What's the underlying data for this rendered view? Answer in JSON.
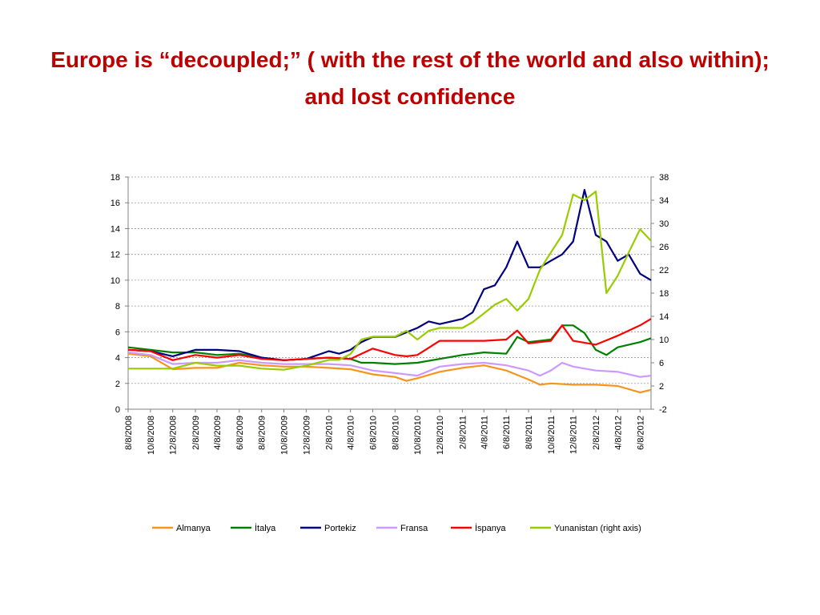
{
  "slide": {
    "title": "Europe is “decoupled;” ( with the rest of the world and also within); and lost confidence"
  },
  "chart_data": {
    "type": "line",
    "title": "",
    "xlabel": "",
    "ylabel": "",
    "y_left": {
      "min": 0,
      "max": 18,
      "ticks": [
        "0",
        "2",
        "4",
        "6",
        "8",
        "10",
        "12",
        "14",
        "16",
        "18"
      ]
    },
    "y_right": {
      "min": -2,
      "max": 38,
      "ticks": [
        "-2",
        "2",
        "6",
        "10",
        "14",
        "18",
        "22",
        "26",
        "30",
        "34",
        "38"
      ]
    },
    "x_range": [
      "2008-08-01",
      "2012-07-01"
    ],
    "x_ticks": [
      "8/8/2008",
      "10/8/2008",
      "12/8/2008",
      "2/8/2009",
      "4/8/2009",
      "6/8/2009",
      "8/8/2009",
      "10/8/2009",
      "12/8/2009",
      "2/8/2010",
      "4/8/2010",
      "6/8/2010",
      "8/8/2010",
      "10/8/2010",
      "12/8/2010",
      "2/8/2011",
      "4/8/2011",
      "6/8/2011",
      "8/8/2011",
      "10/8/2011",
      "12/8/2011",
      "2/8/2012",
      "4/8/2012",
      "6/8/2012"
    ],
    "grid": "horizontal dashed",
    "legend_position": "bottom",
    "series": [
      {
        "name": "Almanya",
        "color": "#f7941d",
        "axis": "left",
        "points": [
          [
            "2008-08-01",
            4.3
          ],
          [
            "2008-10-01",
            4.1
          ],
          [
            "2008-12-01",
            3.1
          ],
          [
            "2009-02-01",
            3.2
          ],
          [
            "2009-04-01",
            3.2
          ],
          [
            "2009-06-01",
            3.6
          ],
          [
            "2009-08-01",
            3.4
          ],
          [
            "2009-10-01",
            3.3
          ],
          [
            "2009-12-01",
            3.3
          ],
          [
            "2010-02-01",
            3.2
          ],
          [
            "2010-04-01",
            3.1
          ],
          [
            "2010-06-01",
            2.7
          ],
          [
            "2010-08-01",
            2.5
          ],
          [
            "2010-09-01",
            2.2
          ],
          [
            "2010-10-01",
            2.4
          ],
          [
            "2010-12-01",
            2.9
          ],
          [
            "2011-02-01",
            3.2
          ],
          [
            "2011-04-01",
            3.4
          ],
          [
            "2011-06-01",
            3.0
          ],
          [
            "2011-08-01",
            2.3
          ],
          [
            "2011-09-01",
            1.9
          ],
          [
            "2011-10-01",
            2.0
          ],
          [
            "2011-12-01",
            1.9
          ],
          [
            "2012-02-01",
            1.9
          ],
          [
            "2012-04-01",
            1.8
          ],
          [
            "2012-06-01",
            1.3
          ],
          [
            "2012-07-01",
            1.5
          ]
        ]
      },
      {
        "name": "İtalya",
        "color": "#008000",
        "axis": "left",
        "points": [
          [
            "2008-08-01",
            4.8
          ],
          [
            "2008-10-01",
            4.6
          ],
          [
            "2008-12-01",
            4.4
          ],
          [
            "2009-02-01",
            4.4
          ],
          [
            "2009-04-01",
            4.2
          ],
          [
            "2009-06-01",
            4.3
          ],
          [
            "2009-08-01",
            4.0
          ],
          [
            "2009-10-01",
            3.8
          ],
          [
            "2009-12-01",
            3.9
          ],
          [
            "2010-02-01",
            4.0
          ],
          [
            "2010-04-01",
            3.9
          ],
          [
            "2010-05-01",
            3.6
          ],
          [
            "2010-06-01",
            3.6
          ],
          [
            "2010-08-01",
            3.5
          ],
          [
            "2010-10-01",
            3.6
          ],
          [
            "2010-12-01",
            3.9
          ],
          [
            "2011-02-01",
            4.2
          ],
          [
            "2011-04-01",
            4.4
          ],
          [
            "2011-06-01",
            4.3
          ],
          [
            "2011-07-01",
            5.6
          ],
          [
            "2011-08-01",
            5.2
          ],
          [
            "2011-10-01",
            5.4
          ],
          [
            "2011-11-01",
            6.5
          ],
          [
            "2011-12-01",
            6.5
          ],
          [
            "2012-01-01",
            5.9
          ],
          [
            "2012-02-01",
            4.6
          ],
          [
            "2012-03-01",
            4.2
          ],
          [
            "2012-04-01",
            4.8
          ],
          [
            "2012-06-01",
            5.2
          ],
          [
            "2012-07-01",
            5.5
          ]
        ]
      },
      {
        "name": "Portekiz",
        "color": "#000080",
        "axis": "left",
        "points": [
          [
            "2008-08-01",
            4.6
          ],
          [
            "2008-10-01",
            4.5
          ],
          [
            "2008-12-01",
            4.1
          ],
          [
            "2009-02-01",
            4.6
          ],
          [
            "2009-04-01",
            4.6
          ],
          [
            "2009-06-01",
            4.5
          ],
          [
            "2009-08-01",
            4.0
          ],
          [
            "2009-10-01",
            3.8
          ],
          [
            "2009-12-01",
            3.9
          ],
          [
            "2010-02-01",
            4.5
          ],
          [
            "2010-03-01",
            4.3
          ],
          [
            "2010-04-01",
            4.6
          ],
          [
            "2010-05-01",
            5.2
          ],
          [
            "2010-06-01",
            5.6
          ],
          [
            "2010-08-01",
            5.6
          ],
          [
            "2010-10-01",
            6.3
          ],
          [
            "2010-11-01",
            6.8
          ],
          [
            "2010-12-01",
            6.6
          ],
          [
            "2011-02-01",
            7.0
          ],
          [
            "2011-03-01",
            7.5
          ],
          [
            "2011-04-01",
            9.3
          ],
          [
            "2011-05-01",
            9.6
          ],
          [
            "2011-06-01",
            11.0
          ],
          [
            "2011-07-01",
            13.0
          ],
          [
            "2011-08-01",
            11.0
          ],
          [
            "2011-09-01",
            11.0
          ],
          [
            "2011-10-01",
            11.5
          ],
          [
            "2011-11-01",
            12.0
          ],
          [
            "2011-12-01",
            13.0
          ],
          [
            "2012-01-01",
            17.0
          ],
          [
            "2012-02-01",
            13.5
          ],
          [
            "2012-03-01",
            13.0
          ],
          [
            "2012-04-01",
            11.5
          ],
          [
            "2012-05-01",
            12.0
          ],
          [
            "2012-06-01",
            10.5
          ],
          [
            "2012-07-01",
            10.0
          ]
        ]
      },
      {
        "name": "Fransa",
        "color": "#cc99ff",
        "axis": "left",
        "points": [
          [
            "2008-08-01",
            4.4
          ],
          [
            "2008-10-01",
            4.2
          ],
          [
            "2008-12-01",
            3.5
          ],
          [
            "2009-02-01",
            3.6
          ],
          [
            "2009-04-01",
            3.6
          ],
          [
            "2009-06-01",
            3.8
          ],
          [
            "2009-08-01",
            3.6
          ],
          [
            "2009-10-01",
            3.5
          ],
          [
            "2009-12-01",
            3.5
          ],
          [
            "2010-02-01",
            3.5
          ],
          [
            "2010-04-01",
            3.4
          ],
          [
            "2010-06-01",
            3.0
          ],
          [
            "2010-08-01",
            2.8
          ],
          [
            "2010-10-01",
            2.6
          ],
          [
            "2010-12-01",
            3.3
          ],
          [
            "2011-02-01",
            3.5
          ],
          [
            "2011-04-01",
            3.6
          ],
          [
            "2011-06-01",
            3.4
          ],
          [
            "2011-08-01",
            3.0
          ],
          [
            "2011-09-01",
            2.6
          ],
          [
            "2011-10-01",
            3.0
          ],
          [
            "2011-11-01",
            3.6
          ],
          [
            "2011-12-01",
            3.3
          ],
          [
            "2012-02-01",
            3.0
          ],
          [
            "2012-04-01",
            2.9
          ],
          [
            "2012-06-01",
            2.5
          ],
          [
            "2012-07-01",
            2.6
          ]
        ]
      },
      {
        "name": "İspanya",
        "color": "#ff0000",
        "axis": "left",
        "points": [
          [
            "2008-08-01",
            4.6
          ],
          [
            "2008-10-01",
            4.5
          ],
          [
            "2008-12-01",
            3.8
          ],
          [
            "2009-02-01",
            4.2
          ],
          [
            "2009-04-01",
            4.0
          ],
          [
            "2009-06-01",
            4.2
          ],
          [
            "2009-08-01",
            3.9
          ],
          [
            "2009-10-01",
            3.8
          ],
          [
            "2009-12-01",
            3.9
          ],
          [
            "2010-02-01",
            4.0
          ],
          [
            "2010-04-01",
            3.9
          ],
          [
            "2010-06-01",
            4.7
          ],
          [
            "2010-08-01",
            4.2
          ],
          [
            "2010-09-01",
            4.1
          ],
          [
            "2010-10-01",
            4.2
          ],
          [
            "2010-12-01",
            5.3
          ],
          [
            "2011-02-01",
            5.3
          ],
          [
            "2011-04-01",
            5.3
          ],
          [
            "2011-06-01",
            5.4
          ],
          [
            "2011-07-01",
            6.1
          ],
          [
            "2011-08-01",
            5.1
          ],
          [
            "2011-10-01",
            5.3
          ],
          [
            "2011-11-01",
            6.5
          ],
          [
            "2011-12-01",
            5.3
          ],
          [
            "2012-02-01",
            5.0
          ],
          [
            "2012-04-01",
            5.7
          ],
          [
            "2012-06-01",
            6.5
          ],
          [
            "2012-07-01",
            7.0
          ]
        ]
      },
      {
        "name": "Yunanistan (right axis)",
        "color": "#99cc00",
        "axis": "right",
        "points": [
          [
            "2008-08-01",
            5.0
          ],
          [
            "2008-10-01",
            5.0
          ],
          [
            "2008-12-01",
            5.0
          ],
          [
            "2009-02-01",
            6.0
          ],
          [
            "2009-04-01",
            5.5
          ],
          [
            "2009-06-01",
            5.5
          ],
          [
            "2009-08-01",
            5.0
          ],
          [
            "2009-10-01",
            4.8
          ],
          [
            "2009-12-01",
            5.5
          ],
          [
            "2010-02-01",
            6.5
          ],
          [
            "2010-03-01",
            6.5
          ],
          [
            "2010-04-01",
            7.5
          ],
          [
            "2010-05-01",
            10.0
          ],
          [
            "2010-06-01",
            10.5
          ],
          [
            "2010-08-01",
            10.5
          ],
          [
            "2010-09-01",
            11.5
          ],
          [
            "2010-10-01",
            10.0
          ],
          [
            "2010-11-01",
            11.5
          ],
          [
            "2010-12-01",
            12.0
          ],
          [
            "2011-02-01",
            12.0
          ],
          [
            "2011-03-01",
            13.0
          ],
          [
            "2011-04-01",
            14.5
          ],
          [
            "2011-05-01",
            16.0
          ],
          [
            "2011-06-01",
            17.0
          ],
          [
            "2011-07-01",
            15.0
          ],
          [
            "2011-08-01",
            17.0
          ],
          [
            "2011-09-01",
            22.0
          ],
          [
            "2011-10-01",
            25.0
          ],
          [
            "2011-11-01",
            28.0
          ],
          [
            "2011-12-01",
            35.0
          ],
          [
            "2012-01-01",
            34.0
          ],
          [
            "2012-02-01",
            35.5
          ],
          [
            "2012-03-01",
            18.0
          ],
          [
            "2012-04-01",
            21.0
          ],
          [
            "2012-05-01",
            25.0
          ],
          [
            "2012-06-01",
            29.0
          ],
          [
            "2012-07-01",
            27.0
          ]
        ]
      }
    ]
  }
}
